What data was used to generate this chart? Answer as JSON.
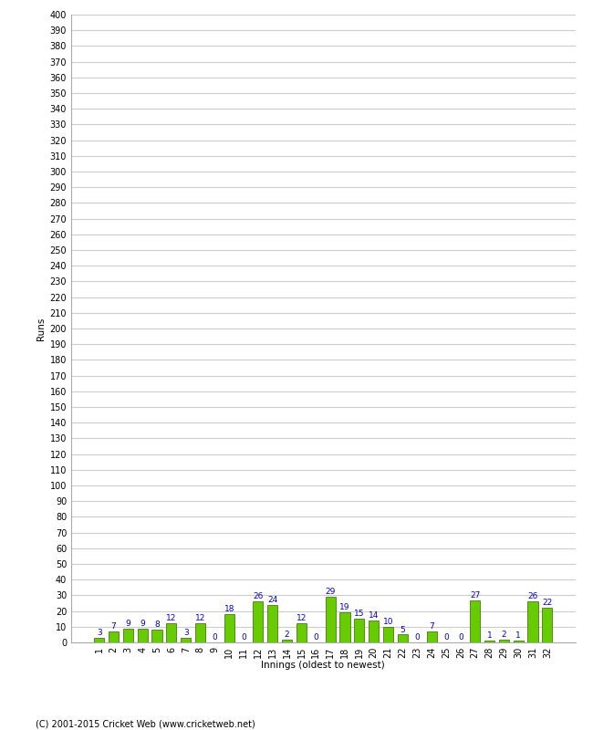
{
  "innings": [
    1,
    2,
    3,
    4,
    5,
    6,
    7,
    8,
    9,
    10,
    11,
    12,
    13,
    14,
    15,
    16,
    17,
    18,
    19,
    20,
    21,
    22,
    23,
    24,
    25,
    26,
    27,
    28,
    29,
    30,
    31,
    32
  ],
  "values": [
    3,
    7,
    9,
    9,
    8,
    12,
    3,
    12,
    0,
    18,
    0,
    26,
    24,
    2,
    12,
    0,
    29,
    19,
    15,
    14,
    10,
    5,
    0,
    7,
    0,
    0,
    27,
    1,
    2,
    1,
    26,
    22
  ],
  "bar_color": "#66cc00",
  "bar_edge_color": "#336600",
  "label_color": "#0000cc",
  "ylabel": "Runs",
  "xlabel": "Innings (oldest to newest)",
  "ytick_step": 10,
  "ymax": 400,
  "background_color": "#ffffff",
  "grid_color": "#cccccc",
  "footer": "(C) 2001-2015 Cricket Web (www.cricketweb.net)"
}
